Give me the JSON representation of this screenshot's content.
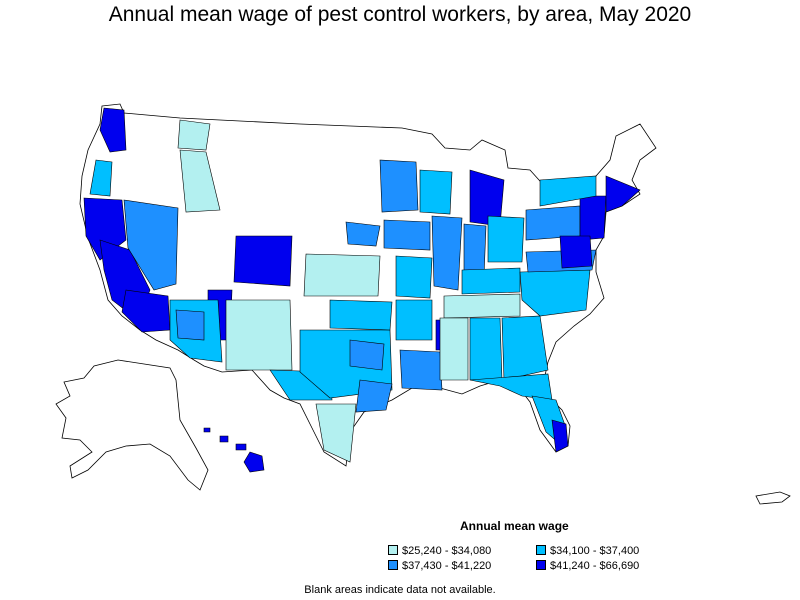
{
  "title": "Annual mean wage of pest control workers, by area, May 2020",
  "legend": {
    "title": "Annual mean wage",
    "items": [
      {
        "label": "$25,240 - $34,080",
        "color": "#b3f0f0"
      },
      {
        "label": "$34,100 - $37,400",
        "color": "#00bfff"
      },
      {
        "label": "$37,430 - $41,220",
        "color": "#1e90ff"
      },
      {
        "label": "$41,240 - $66,690",
        "color": "#0000ee"
      }
    ]
  },
  "footnote": "Blank areas indicate data not available.",
  "map": {
    "region": "United States (conterminous, Alaska, Hawaii, Puerto Rico)",
    "outline_color": "#000000",
    "no_data_color": "#ffffff",
    "region_classes": [
      {
        "area": "Washington (Seattle/Olympia)",
        "class": 3
      },
      {
        "area": "Oregon coast",
        "class": 1
      },
      {
        "area": "California coast",
        "class": 3
      },
      {
        "area": "California central valley",
        "class": 3
      },
      {
        "area": "Nevada",
        "class": 2
      },
      {
        "area": "Southern California",
        "class": 3
      },
      {
        "area": "Arizona",
        "class": 1
      },
      {
        "area": "Colorado Front Range",
        "class": 3
      },
      {
        "area": "Utah",
        "class": 3
      },
      {
        "area": "New Mexico",
        "class": 0
      },
      {
        "area": "Kansas",
        "class": 0
      },
      {
        "area": "Texas",
        "class": 1
      },
      {
        "area": "Minnesota",
        "class": 2
      },
      {
        "area": "Michigan",
        "class": 3
      },
      {
        "area": "Illinois / Indiana",
        "class": 2
      },
      {
        "area": "Northeast corridor",
        "class": 3
      },
      {
        "area": "Southeast",
        "class": 1
      },
      {
        "area": "Florida",
        "class": 1
      },
      {
        "area": "South Florida",
        "class": 3
      },
      {
        "area": "Hawaii",
        "class": 3
      },
      {
        "area": "Alaska",
        "class": null
      }
    ]
  }
}
